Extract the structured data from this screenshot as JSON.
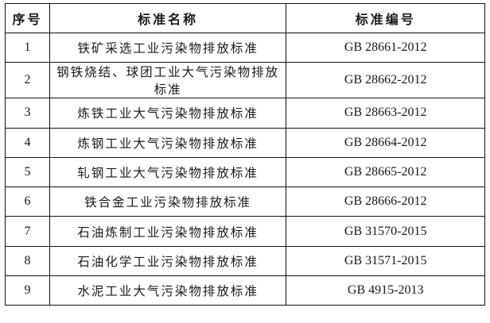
{
  "table": {
    "headers": [
      "序号",
      "标准名称",
      "标准编号"
    ],
    "rows": [
      {
        "no": "1",
        "name": "铁矿采选工业污染物排放标准",
        "code": "GB 28661-2012"
      },
      {
        "no": "2",
        "name": "钢铁烧结、球团工业大气污染物排放标准",
        "code": "GB 28662-2012"
      },
      {
        "no": "3",
        "name": "炼铁工业大气污染物排放标准",
        "code": "GB 28663-2012"
      },
      {
        "no": "4",
        "name": "炼钢工业大气污染物排放标准",
        "code": "GB 28664-2012"
      },
      {
        "no": "5",
        "name": "轧钢工业大气污染物排放标准",
        "code": "GB 28665-2012"
      },
      {
        "no": "6",
        "name": "铁合金工业污染物排放标准",
        "code": "GB 28666-2012"
      },
      {
        "no": "7",
        "name": "石油炼制工业污染物排放标准",
        "code": "GB 31570-2015"
      },
      {
        "no": "8",
        "name": "石油化学工业污染物排放标准",
        "code": "GB 31571-2015"
      },
      {
        "no": "9",
        "name": "水泥工业大气污染物排放标准",
        "code": "GB 4915-2013"
      }
    ]
  }
}
